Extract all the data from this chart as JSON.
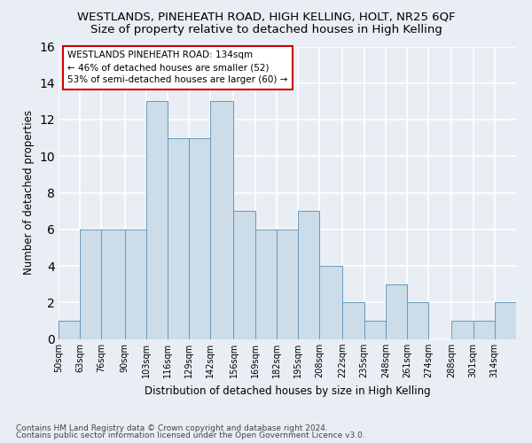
{
  "title": "WESTLANDS, PINEHEATH ROAD, HIGH KELLING, HOLT, NR25 6QF",
  "subtitle": "Size of property relative to detached houses in High Kelling",
  "xlabel": "Distribution of detached houses by size in High Kelling",
  "ylabel": "Number of detached properties",
  "bin_labels": [
    "50sqm",
    "63sqm",
    "76sqm",
    "90sqm",
    "103sqm",
    "116sqm",
    "129sqm",
    "142sqm",
    "156sqm",
    "169sqm",
    "182sqm",
    "195sqm",
    "208sqm",
    "222sqm",
    "235sqm",
    "248sqm",
    "261sqm",
    "274sqm",
    "288sqm",
    "301sqm",
    "314sqm"
  ],
  "values": [
    1,
    6,
    6,
    6,
    13,
    11,
    11,
    13,
    7,
    6,
    6,
    7,
    4,
    2,
    1,
    3,
    2,
    0,
    1,
    1,
    2
  ],
  "bar_color": "#ccdce8",
  "bar_edge_color": "#6699bb",
  "annotation_text": "WESTLANDS PINEHEATH ROAD: 134sqm\n← 46% of detached houses are smaller (52)\n53% of semi-detached houses are larger (60) →",
  "annotation_box_color": "#ffffff",
  "annotation_box_edge_color": "#cc0000",
  "footnote1": "Contains HM Land Registry data © Crown copyright and database right 2024.",
  "footnote2": "Contains public sector information licensed under the Open Government Licence v3.0.",
  "ylim": [
    0,
    16
  ],
  "bin_edges": [
    50,
    63,
    76,
    90,
    103,
    116,
    129,
    142,
    156,
    169,
    182,
    195,
    208,
    222,
    235,
    248,
    261,
    274,
    288,
    301,
    314,
    327
  ],
  "background_color": "#e8eef4",
  "grid_color": "#ffffff",
  "title_fontsize": 9.5,
  "subtitle_fontsize": 9.5,
  "ylabel_fontsize": 8.5,
  "xlabel_fontsize": 8.5,
  "tick_fontsize": 7,
  "annotation_fontsize": 7.5,
  "footnote_fontsize": 6.5
}
